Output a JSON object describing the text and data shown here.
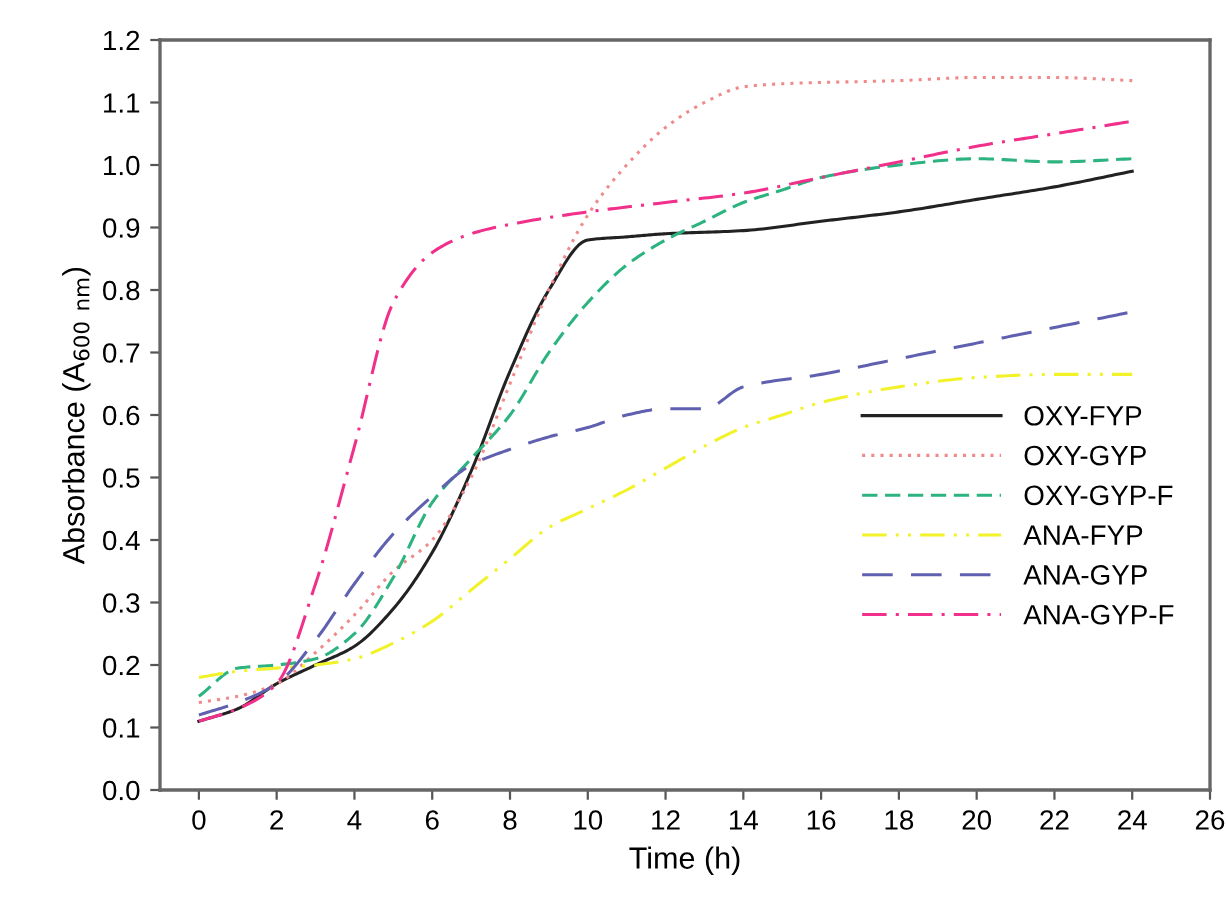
{
  "chart_data": {
    "type": "line",
    "xlabel": "Time (h)",
    "ylabel": "Absorbance (A$_{600 nm}$)",
    "xlim": [
      -1,
      26
    ],
    "ylim": [
      0,
      1.2
    ],
    "xticks": [
      0,
      2,
      4,
      6,
      8,
      10,
      12,
      14,
      16,
      18,
      20,
      22,
      24,
      26
    ],
    "yticks": [
      {
        "value": 0,
        "label": "0.0"
      },
      0.1,
      0.2,
      0.3,
      0.4,
      0.5,
      0.6,
      0.7,
      0.8,
      0.9,
      {
        "value": 1,
        "label": "1.0"
      },
      1.1,
      1.2
    ],
    "grid": false,
    "legend": "bottom right",
    "marker": "none",
    "series": [
      {
        "name": "OXY-FYP",
        "color": "#222222",
        "line_style": "solid",
        "x": [
          0,
          1,
          2,
          3,
          4,
          5,
          6,
          7,
          8,
          9,
          10,
          11,
          12,
          14,
          16,
          18,
          20,
          22,
          24
        ],
        "values": [
          0.11,
          0.13,
          0.17,
          0.2,
          0.23,
          0.29,
          0.38,
          0.51,
          0.67,
          0.8,
          0.88,
          0.885,
          0.89,
          0.895,
          0.91,
          0.925,
          0.945,
          0.965,
          0.99
        ]
      },
      {
        "name": "OXY-GYP",
        "color": "#f08a8a",
        "line_style": "dotted",
        "x": [
          0,
          1,
          2,
          3,
          4,
          5,
          6,
          7,
          8,
          9,
          10,
          11,
          12,
          13,
          14,
          15,
          18,
          20,
          22,
          24
        ],
        "values": [
          0.14,
          0.15,
          0.17,
          0.22,
          0.28,
          0.35,
          0.4,
          0.5,
          0.65,
          0.8,
          0.92,
          1.0,
          1.06,
          1.1,
          1.125,
          1.13,
          1.135,
          1.14,
          1.14,
          1.135
        ]
      },
      {
        "name": "OXY-GYP-F",
        "color": "#2db37f",
        "line_style": "dashed",
        "x": [
          0,
          1,
          2,
          3,
          4,
          5,
          6,
          7,
          8,
          9,
          10,
          11,
          12,
          13,
          14,
          15,
          16,
          18,
          20,
          22,
          24
        ],
        "values": [
          0.15,
          0.195,
          0.2,
          0.21,
          0.25,
          0.34,
          0.46,
          0.53,
          0.6,
          0.7,
          0.78,
          0.84,
          0.88,
          0.91,
          0.94,
          0.96,
          0.98,
          1.0,
          1.01,
          1.005,
          1.01
        ]
      },
      {
        "name": "ANA-FYP",
        "color": "#f2f22a",
        "line_style": "dashdotdot",
        "x": [
          0,
          1,
          2,
          3,
          4,
          5,
          6,
          7,
          8,
          9,
          10,
          11,
          12,
          13,
          14,
          15,
          16,
          18,
          20,
          22,
          24
        ],
        "values": [
          0.18,
          0.19,
          0.195,
          0.2,
          0.21,
          0.235,
          0.27,
          0.32,
          0.37,
          0.42,
          0.45,
          0.48,
          0.515,
          0.55,
          0.58,
          0.6,
          0.62,
          0.645,
          0.66,
          0.665,
          0.665
        ]
      },
      {
        "name": "ANA-GYP",
        "color": "#6060b0",
        "line_style": "longdash",
        "x": [
          0,
          1,
          2,
          3,
          4,
          5,
          6,
          7,
          8,
          9,
          10,
          11,
          12,
          13,
          14,
          16,
          18,
          20,
          22,
          24
        ],
        "values": [
          0.12,
          0.14,
          0.17,
          0.24,
          0.33,
          0.41,
          0.47,
          0.52,
          0.545,
          0.565,
          0.58,
          0.6,
          0.61,
          0.61,
          0.645,
          0.665,
          0.69,
          0.715,
          0.74,
          0.765
        ]
      },
      {
        "name": "ANA-GYP-F",
        "color": "#f0308a",
        "line_style": "dashdot",
        "x": [
          0,
          1,
          2,
          3,
          4,
          5,
          6,
          7,
          8,
          10,
          12,
          14,
          16,
          18,
          20,
          22,
          24
        ],
        "values": [
          0.11,
          0.13,
          0.17,
          0.33,
          0.55,
          0.78,
          0.86,
          0.89,
          0.905,
          0.925,
          0.94,
          0.955,
          0.98,
          1.005,
          1.03,
          1.05,
          1.07
        ]
      }
    ]
  }
}
